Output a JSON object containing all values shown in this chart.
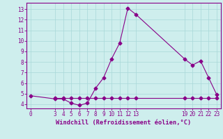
{
  "xlabel": "Windchill (Refroidissement éolien,°C)",
  "bg_color": "#ceeeed",
  "line_color": "#880088",
  "line1_x": [
    0,
    3,
    4,
    5,
    6,
    7,
    8,
    9,
    10,
    11,
    12,
    13,
    19,
    20,
    21,
    22,
    23
  ],
  "line1_y": [
    4.8,
    4.5,
    4.5,
    4.1,
    3.9,
    4.1,
    5.5,
    6.5,
    8.3,
    9.8,
    13.1,
    12.5,
    8.3,
    7.7,
    8.1,
    6.5,
    4.9
  ],
  "line2_x": [
    3,
    4,
    5,
    6,
    7,
    8,
    9,
    10,
    11,
    12,
    13,
    19,
    20,
    21,
    22,
    23
  ],
  "line2_y": [
    4.6,
    4.6,
    4.6,
    4.6,
    4.6,
    4.6,
    4.6,
    4.6,
    4.6,
    4.6,
    4.6,
    4.6,
    4.6,
    4.6,
    4.6,
    4.6
  ],
  "xticks": [
    0,
    3,
    4,
    5,
    6,
    7,
    8,
    9,
    10,
    11,
    12,
    13,
    19,
    20,
    21,
    22,
    23
  ],
  "yticks": [
    4,
    5,
    6,
    7,
    8,
    9,
    10,
    11,
    12,
    13
  ],
  "xlim": [
    -0.5,
    23.5
  ],
  "ylim": [
    3.6,
    13.6
  ],
  "grid_color": "#a8d8d8",
  "marker": "D",
  "markersize": 2.5,
  "linewidth": 0.8,
  "tick_fontsize": 5.5,
  "xlabel_fontsize": 6.2
}
